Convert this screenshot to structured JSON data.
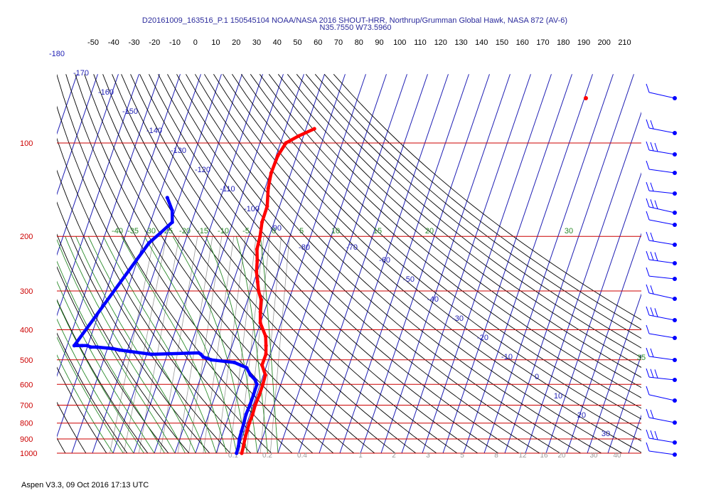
{
  "header": {
    "title_line1": "D20161009_163516_P.1 150545104 NOAA/NASA 2016 SHOUT-HRR, Northrup/Grumman Global Hawk, NASA 872 (AV-6)",
    "title_line2": "N35.7550 W73.5960"
  },
  "footer": {
    "text": "Aspen V3.3, 09 Oct 2016  17:13 UTC"
  },
  "chart_data": {
    "type": "line",
    "subtype": "skew-t log-p thermodynamic diagram",
    "pressure_levels": [
      100,
      200,
      300,
      400,
      500,
      600,
      700,
      800,
      900,
      1000
    ],
    "temperature_ticks_top": [
      "-50",
      "-40",
      "-30",
      "-20",
      "-10",
      "0",
      "10",
      "20",
      "30",
      "40",
      "50",
      "60",
      "70",
      "80",
      "90",
      "100",
      "110",
      "120",
      "130",
      "140",
      "150",
      "160",
      "170",
      "180",
      "190",
      "200",
      "210"
    ],
    "isotherm_labels": [
      "-180",
      "-170",
      "-160",
      "-150",
      "-140",
      "-130",
      "-120",
      "-110",
      "-100",
      "-90",
      "-80",
      "-70",
      "-60",
      "-50",
      "-40",
      "-30",
      "-20",
      "-10",
      "0",
      "10",
      "20",
      "30"
    ],
    "moist_adiabat_labels": [
      "-40",
      "-35",
      "-30",
      "-25",
      "-20",
      "-15",
      "-10",
      "-5",
      "0",
      "5",
      "10",
      "15",
      "20",
      "30",
      "35"
    ],
    "mixing_ratio_labels": [
      "0.1",
      "0.2",
      "0.4",
      "1",
      "2",
      "3",
      "5",
      "8",
      "12",
      "16",
      "20",
      "30",
      "40"
    ],
    "pressure_range_hPa": [
      1000,
      70
    ],
    "colors": {
      "temperature": "#ff0000",
      "dewpoint": "#0000ff",
      "isobars": "#cc0000",
      "isotherms": "#1f1fb4",
      "dry_adiabats": "#000000",
      "moist_adiabats": "#2a8a2a",
      "mixing_ratio": "#999999",
      "wind_barbs": "#0000ff",
      "header_text": "#2b2b9c"
    },
    "series": [
      {
        "name": "",
        "role": "temperature",
        "points": [
          [
            22.4,
            1000
          ],
          [
            22.1,
            950
          ],
          [
            21.6,
            900
          ],
          [
            21.3,
            850
          ],
          [
            21.1,
            800
          ],
          [
            21.3,
            750
          ],
          [
            21.0,
            700
          ],
          [
            21.3,
            650
          ],
          [
            21.3,
            600
          ],
          [
            21.0,
            560
          ],
          [
            17.7,
            520
          ],
          [
            17.8,
            480
          ],
          [
            16.4,
            450
          ],
          [
            14.7,
            420
          ],
          [
            9.9,
            380
          ],
          [
            8.1,
            350
          ],
          [
            6.5,
            320
          ],
          [
            3.8,
            300
          ],
          [
            1.8,
            280
          ],
          [
            -0.4,
            260
          ],
          [
            -1.8,
            240
          ],
          [
            -3.9,
            220
          ],
          [
            -4.5,
            200
          ],
          [
            -5.9,
            180
          ],
          [
            -6.0,
            160
          ],
          [
            -8.5,
            140
          ],
          [
            -9.6,
            125
          ],
          [
            -9.2,
            110
          ],
          [
            -7.4,
            100
          ],
          [
            -2.5,
            95
          ],
          [
            4.1,
            90
          ]
        ]
      },
      {
        "name": "",
        "role": "dewpoint",
        "points": [
          [
            19.9,
            1000
          ],
          [
            19.7,
            950
          ],
          [
            18.9,
            900
          ],
          [
            18.7,
            850
          ],
          [
            18.5,
            800
          ],
          [
            18.1,
            750
          ],
          [
            18.4,
            700
          ],
          [
            18.5,
            650
          ],
          [
            18.4,
            600
          ],
          [
            16.8,
            580
          ],
          [
            13.8,
            560
          ],
          [
            10.6,
            530
          ],
          [
            3.9,
            510
          ],
          [
            -7.8,
            500
          ],
          [
            -9.9,
            495
          ],
          [
            -12.1,
            490
          ],
          [
            -13.7,
            480
          ],
          [
            -15.0,
            475
          ],
          [
            -37.8,
            480
          ],
          [
            -48.6,
            470
          ],
          [
            -53.9,
            465
          ],
          [
            -57.4,
            460
          ],
          [
            -65.4,
            455
          ],
          [
            -68.3,
            455
          ],
          [
            -70.2,
            450
          ],
          [
            -72.8,
            450
          ],
          [
            -76.6,
            450
          ],
          [
            -57.3,
            210
          ],
          [
            -53.4,
            195
          ],
          [
            -49.4,
            180
          ],
          [
            -51.4,
            165
          ],
          [
            -55.9,
            150
          ]
        ]
      }
    ],
    "wind_barbs_on_right": true,
    "extra_marker": {
      "color": "#ff0000",
      "note": "isolated red point at upper right"
    }
  }
}
